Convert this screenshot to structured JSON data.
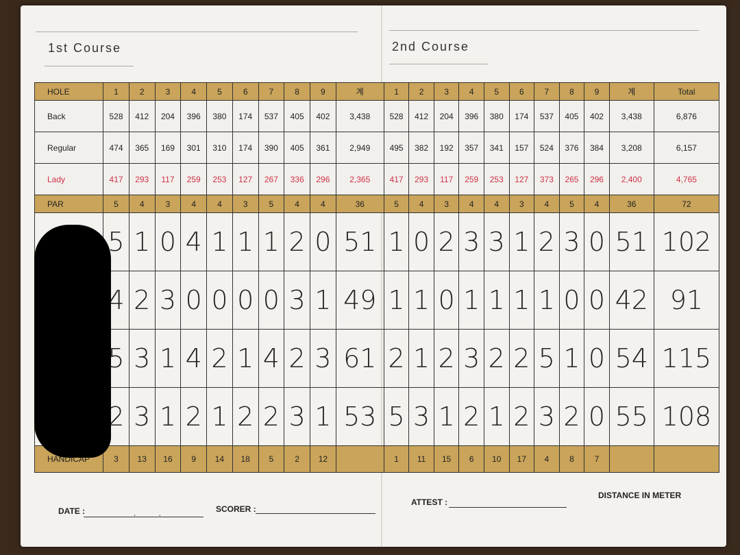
{
  "course1_title": "1st Course",
  "course2_title": "2nd Course",
  "header": {
    "label": "HOLE",
    "holes1": [
      "1",
      "2",
      "3",
      "4",
      "5",
      "6",
      "7",
      "8",
      "9"
    ],
    "sub1": "계",
    "holes2": [
      "1",
      "2",
      "3",
      "4",
      "5",
      "6",
      "7",
      "8",
      "9"
    ],
    "sub2": "계",
    "total": "Total"
  },
  "tees": [
    {
      "label": "Back",
      "out": [
        "528",
        "412",
        "204",
        "396",
        "380",
        "174",
        "537",
        "405",
        "402"
      ],
      "out_sum": "3,438",
      "in": [
        "528",
        "412",
        "204",
        "396",
        "380",
        "174",
        "537",
        "405",
        "402"
      ],
      "in_sum": "3,438",
      "total": "6,876"
    },
    {
      "label": "Regular",
      "out": [
        "474",
        "365",
        "169",
        "301",
        "310",
        "174",
        "390",
        "405",
        "361"
      ],
      "out_sum": "2,949",
      "in": [
        "495",
        "382",
        "192",
        "357",
        "341",
        "157",
        "524",
        "376",
        "384"
      ],
      "in_sum": "3,208",
      "total": "6,157"
    },
    {
      "label": "Lady",
      "out": [
        "417",
        "293",
        "117",
        "259",
        "253",
        "127",
        "267",
        "336",
        "296"
      ],
      "out_sum": "2,365",
      "in": [
        "417",
        "293",
        "117",
        "259",
        "253",
        "127",
        "373",
        "265",
        "296"
      ],
      "in_sum": "2,400",
      "total": "4,765"
    }
  ],
  "par": {
    "label": "PAR",
    "out": [
      "5",
      "4",
      "3",
      "4",
      "4",
      "3",
      "5",
      "4",
      "4"
    ],
    "out_sum": "36",
    "in": [
      "5",
      "4",
      "3",
      "4",
      "4",
      "3",
      "4",
      "5",
      "4"
    ],
    "in_sum": "36",
    "total": "72"
  },
  "scores": [
    {
      "out": [
        "5",
        "1",
        "0",
        "4",
        "1",
        "1",
        "1",
        "2",
        "0"
      ],
      "out_sum": "51",
      "in": [
        "1",
        "0",
        "2",
        "3",
        "3",
        "1",
        "2",
        "3",
        "0"
      ],
      "in_sum": "51",
      "total": "102"
    },
    {
      "out": [
        "4",
        "2",
        "3",
        "0",
        "0",
        "0",
        "0",
        "3",
        "1"
      ],
      "out_sum": "49",
      "in": [
        "1",
        "1",
        "0",
        "1",
        "1",
        "1",
        "1",
        "0",
        "0"
      ],
      "in_sum": "42",
      "total": "91"
    },
    {
      "out": [
        "5",
        "3",
        "1",
        "4",
        "2",
        "1",
        "4",
        "2",
        "3"
      ],
      "out_sum": "61",
      "in": [
        "2",
        "1",
        "2",
        "3",
        "2",
        "2",
        "5",
        "1",
        "0"
      ],
      "in_sum": "54",
      "total": "115"
    },
    {
      "out": [
        "2",
        "3",
        "1",
        "2",
        "1",
        "2",
        "2",
        "3",
        "1"
      ],
      "out_sum": "53",
      "in": [
        "5",
        "3",
        "1",
        "2",
        "1",
        "2",
        "3",
        "2",
        "0"
      ],
      "in_sum": "55",
      "total": "108"
    }
  ],
  "handicap": {
    "label": "HANDICAP",
    "out": [
      "3",
      "13",
      "16",
      "9",
      "14",
      "18",
      "5",
      "2",
      "12"
    ],
    "in": [
      "1",
      "11",
      "15",
      "6",
      "10",
      "17",
      "4",
      "8",
      "7"
    ]
  },
  "footer": {
    "date": "DATE :",
    "date_sep": ".          .",
    "scorer": "SCORER :",
    "attest": "ATTEST :",
    "distance": "DISTANCE IN METER"
  },
  "colors": {
    "gold": "#c9a45a",
    "lady_red": "#d0304a"
  }
}
